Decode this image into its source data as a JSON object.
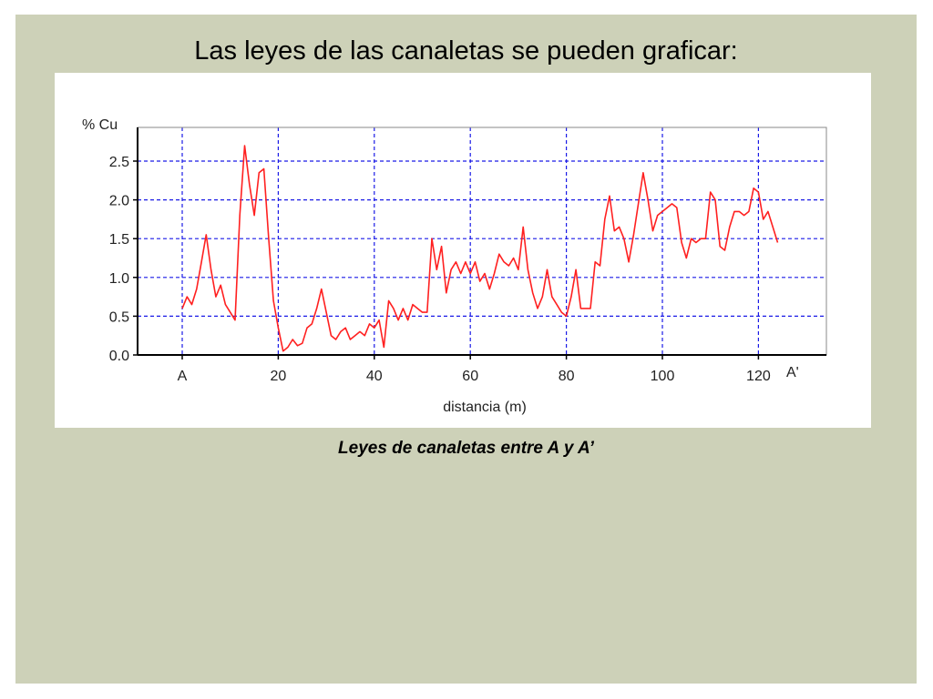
{
  "slide": {
    "title": "Las leyes de las canaletas se pueden graficar:",
    "caption": "Leyes de canaletas entre A y A’"
  },
  "chart_data": {
    "type": "line",
    "title": "",
    "xlabel": "distancia (m)",
    "ylabel": "% Cu",
    "xlim": [
      0,
      130
    ],
    "ylim": [
      0,
      2.9
    ],
    "grid": true,
    "x_ticks": [
      0,
      20,
      40,
      60,
      80,
      100,
      120
    ],
    "x_tick_labels": [
      "A",
      "20",
      "40",
      "60",
      "80",
      "100",
      "120"
    ],
    "x_end_label": "A'",
    "y_ticks": [
      0,
      0.5,
      1,
      1.5,
      2,
      2.5
    ],
    "y_tick_labels": [
      "0.0",
      "0.5",
      "1.0",
      "1.5",
      "2.0",
      "2.5"
    ],
    "colors": {
      "line": "#ff2020",
      "grid": "#1a1ae6",
      "axis": "#000000"
    },
    "series": [
      {
        "x": [
          0,
          1,
          2,
          3,
          4,
          5,
          6,
          7,
          8,
          9,
          10,
          11,
          12,
          13,
          14,
          15,
          16,
          17,
          18,
          19,
          20,
          21,
          22,
          23,
          24,
          25,
          26,
          27,
          28,
          29,
          30,
          31,
          32,
          33,
          34,
          35,
          36,
          37,
          38,
          39,
          40,
          41,
          42,
          43,
          44,
          45,
          46,
          47,
          48,
          49,
          50,
          51,
          52,
          53,
          54,
          55,
          56,
          57,
          58,
          59,
          60,
          61,
          62,
          63,
          64,
          65,
          66,
          67,
          68,
          69,
          70,
          71,
          72,
          73,
          74,
          75,
          76,
          77,
          78,
          79,
          80,
          81,
          82,
          83,
          84,
          85,
          86,
          87,
          88,
          89,
          90,
          91,
          92,
          93,
          94,
          95,
          96,
          97,
          98,
          99,
          100,
          101,
          102,
          103,
          104,
          105,
          106,
          107,
          108,
          109,
          110,
          111,
          112,
          113,
          114,
          115,
          116,
          117,
          118,
          119,
          120,
          121,
          122,
          123,
          124
        ],
        "y": [
          0.6,
          0.75,
          0.65,
          0.85,
          1.2,
          1.55,
          1.1,
          0.75,
          0.9,
          0.65,
          0.55,
          0.45,
          1.8,
          2.7,
          2.2,
          1.8,
          2.35,
          2.4,
          1.5,
          0.7,
          0.35,
          0.05,
          0.1,
          0.2,
          0.12,
          0.15,
          0.35,
          0.4,
          0.6,
          0.85,
          0.55,
          0.25,
          0.2,
          0.3,
          0.35,
          0.2,
          0.25,
          0.3,
          0.25,
          0.4,
          0.35,
          0.45,
          0.1,
          0.7,
          0.6,
          0.45,
          0.6,
          0.45,
          0.65,
          0.6,
          0.55,
          0.55,
          1.5,
          1.1,
          1.4,
          0.8,
          1.1,
          1.2,
          1.05,
          1.2,
          1.05,
          1.2,
          0.95,
          1.05,
          0.85,
          1.05,
          1.3,
          1.2,
          1.15,
          1.25,
          1.1,
          1.65,
          1.1,
          0.8,
          0.6,
          0.75,
          1.1,
          0.75,
          0.65,
          0.55,
          0.5,
          0.75,
          1.1,
          0.6,
          0.6,
          0.6,
          1.2,
          1.15,
          1.75,
          2.05,
          1.6,
          1.65,
          1.5,
          1.2,
          1.55,
          1.95,
          2.35,
          2.0,
          1.6,
          1.8,
          1.85,
          1.9,
          1.95,
          1.9,
          1.45,
          1.25,
          1.5,
          1.45,
          1.5,
          1.5,
          2.1,
          2.0,
          1.4,
          1.35,
          1.65,
          1.85,
          1.85,
          1.8,
          1.85,
          2.15,
          2.1,
          1.75,
          1.85,
          1.65,
          1.45
        ]
      }
    ]
  }
}
